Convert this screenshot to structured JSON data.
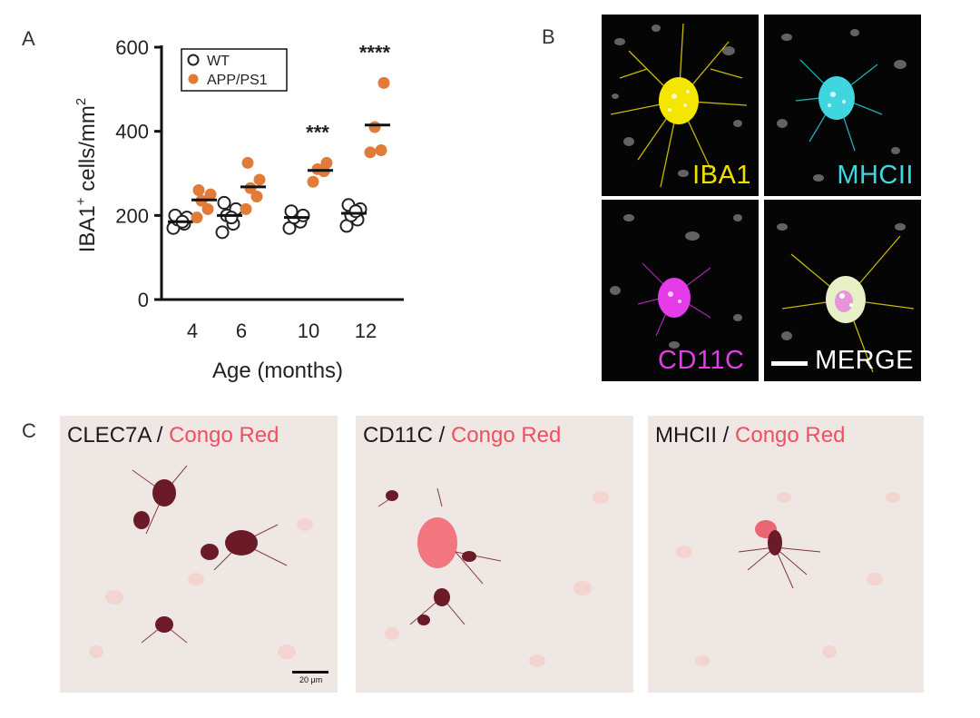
{
  "panels": {
    "a": "A",
    "b": "B",
    "c": "C"
  },
  "chart_data": {
    "type": "scatter",
    "categories": [
      "4",
      "6",
      "10",
      "12"
    ],
    "xlabel": "Age (months)",
    "ylabel_main": "IBA1",
    "ylabel_sup": "+",
    "ylabel_rest": " cells/mm",
    "ylabel_sup2": "2",
    "ylim": [
      0,
      600
    ],
    "yticks": [
      0,
      200,
      400,
      600
    ],
    "yticklabels": [
      "0",
      "200",
      "400",
      "600"
    ],
    "legend": [
      {
        "name": "WT",
        "marker": "open-circle"
      },
      {
        "name": "APP/PS1",
        "marker": "filled-circle"
      }
    ],
    "series": [
      {
        "name": "WT",
        "color": "#222222",
        "points": [
          [
            170,
            180,
            190,
            195,
            200,
            185
          ],
          [
            160,
            180,
            200,
            215,
            230,
            195
          ],
          [
            170,
            185,
            195,
            200,
            210
          ],
          [
            175,
            190,
            200,
            215,
            225,
            210
          ]
        ],
        "means": [
          185,
          200,
          195,
          205
        ]
      },
      {
        "name": "APP/PS1",
        "color": "#e07b39",
        "points": [
          [
            195,
            215,
            235,
            250,
            260
          ],
          [
            215,
            245,
            265,
            285,
            325
          ],
          [
            280,
            305,
            310,
            325
          ],
          [
            350,
            355,
            410,
            515
          ]
        ],
        "means": [
          237,
          268,
          307,
          415
        ]
      }
    ],
    "significance": [
      "",
      "",
      "***",
      "****"
    ]
  },
  "micrographs": [
    {
      "label": "IBA1",
      "color": "#f0e000"
    },
    {
      "label": "MHCII",
      "color": "#3fd6e0"
    },
    {
      "label": "CD11C",
      "color": "#e43ce8"
    },
    {
      "label": "MERGE",
      "color": "#ffffff"
    }
  ],
  "brightfield": [
    {
      "antibody": "CLEC7A",
      "separator": " / ",
      "stain": "Congo Red"
    },
    {
      "antibody": "CD11C",
      "separator": " / ",
      "stain": "Congo Red"
    },
    {
      "antibody": "MHCII",
      "separator": " / ",
      "stain": "Congo Red"
    }
  ],
  "scale_label": "20 μm"
}
